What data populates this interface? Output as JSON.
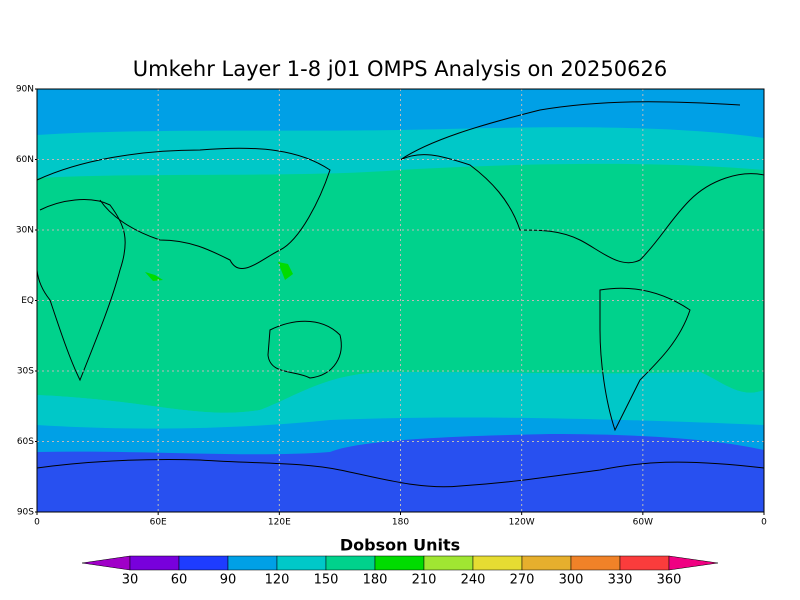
{
  "title": "Umkehr Layer 1-8 j01 OMPS Analysis on 20250626",
  "map": {
    "lat_labels": [
      "90N",
      "60N",
      "30N",
      "EQ",
      "30S",
      "60S",
      "90S"
    ],
    "lon_labels": [
      "0",
      "60E",
      "120E",
      "180",
      "120W",
      "60W",
      "0"
    ]
  },
  "colorbar": {
    "label": "Dobson Units",
    "ticks": [
      30,
      60,
      90,
      120,
      150,
      180,
      210,
      240,
      270,
      300,
      330,
      360
    ],
    "colors": [
      "#a000c8",
      "#7800dc",
      "#1e3cff",
      "#00a0e6",
      "#00c8c8",
      "#00d28c",
      "#00dc00",
      "#a0e632",
      "#e6dc32",
      "#e6af2d",
      "#f08228",
      "#fa3c3c",
      "#f00082"
    ]
  }
}
